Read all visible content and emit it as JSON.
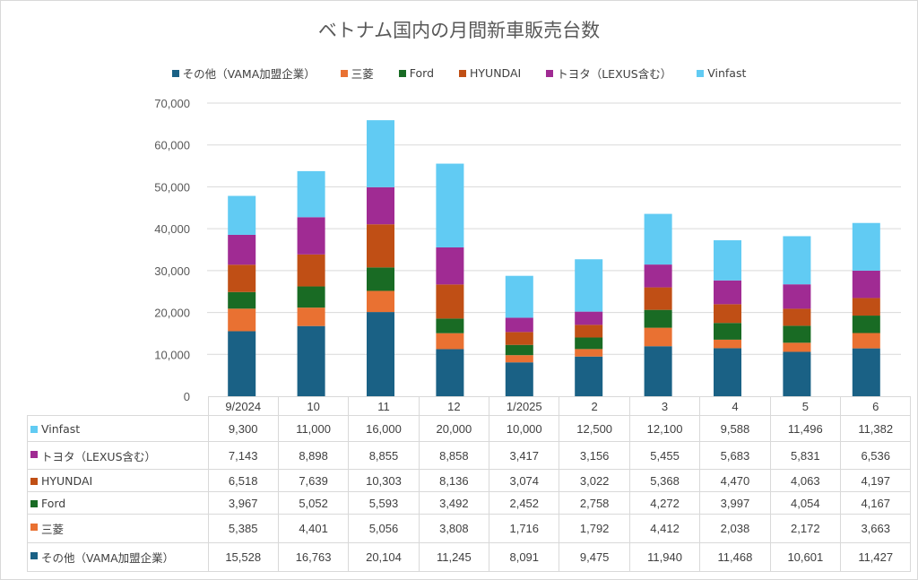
{
  "chart_data": {
    "type": "bar",
    "stacked": true,
    "title": "ベトナム国内の月間新車販売台数",
    "xlabel": "",
    "ylabel": "",
    "ylim": [
      0,
      70000
    ],
    "yticks": [
      0,
      10000,
      20000,
      30000,
      40000,
      50000,
      60000,
      70000
    ],
    "ytick_labels": [
      "0",
      "10,000",
      "20,000",
      "30,000",
      "40,000",
      "50,000",
      "60,000",
      "70,000"
    ],
    "grid": true,
    "legend_position": "top",
    "categories": [
      "9/2024",
      "10",
      "11",
      "12",
      "1/2025",
      "2",
      "3",
      "4",
      "5",
      "6"
    ],
    "series": [
      {
        "name": "その他（VAMA加盟企業）",
        "color": "#1a6185",
        "values": [
          15528,
          16763,
          20104,
          11245,
          8091,
          9475,
          11940,
          11468,
          10601,
          11427
        ],
        "labels": [
          "15,528",
          "16,763",
          "20,104",
          "11,245",
          "8,091",
          "9,475",
          "11,940",
          "11,468",
          "10,601",
          "11,427"
        ]
      },
      {
        "name": "三菱",
        "color": "#e97132",
        "values": [
          5385,
          4401,
          5056,
          3808,
          1716,
          1792,
          4412,
          2038,
          2172,
          3663
        ],
        "labels": [
          "5,385",
          "4,401",
          "5,056",
          "3,808",
          "1,716",
          "1,792",
          "4,412",
          "2,038",
          "2,172",
          "3,663"
        ]
      },
      {
        "name": "Ford",
        "color": "#196b24",
        "values": [
          3967,
          5052,
          5593,
          3492,
          2452,
          2758,
          4272,
          3997,
          4054,
          4167
        ],
        "labels": [
          "3,967",
          "5,052",
          "5,593",
          "3,492",
          "2,452",
          "2,758",
          "4,272",
          "3,997",
          "4,054",
          "4,167"
        ]
      },
      {
        "name": "HYUNDAI",
        "color": "#c04f15",
        "values": [
          6518,
          7639,
          10303,
          8136,
          3074,
          3022,
          5368,
          4470,
          4063,
          4197
        ],
        "labels": [
          "6,518",
          "7,639",
          "10,303",
          "8,136",
          "3,074",
          "3,022",
          "5,368",
          "4,470",
          "4,063",
          "4,197"
        ]
      },
      {
        "name": "トヨタ（LEXUS含む）",
        "color": "#a02b93",
        "values": [
          7143,
          8898,
          8855,
          8858,
          3417,
          3156,
          5455,
          5683,
          5831,
          6536
        ],
        "labels": [
          "7,143",
          "8,898",
          "8,855",
          "8,858",
          "3,417",
          "3,156",
          "5,455",
          "5,683",
          "5,831",
          "6,536"
        ]
      },
      {
        "name": "Vinfast",
        "color": "#61cbf3",
        "values": [
          9300,
          11000,
          16000,
          20000,
          10000,
          12500,
          12100,
          9588,
          11496,
          11382
        ],
        "labels": [
          "9,300",
          "11,000",
          "16,000",
          "20,000",
          "10,000",
          "12,500",
          "12,100",
          "9,588",
          "11,496",
          "11,382"
        ]
      }
    ],
    "table_row_order": [
      "Vinfast",
      "トヨタ（LEXUS含む）",
      "HYUNDAI",
      "Ford",
      "三菱",
      "その他（VAMA加盟企業）"
    ]
  }
}
